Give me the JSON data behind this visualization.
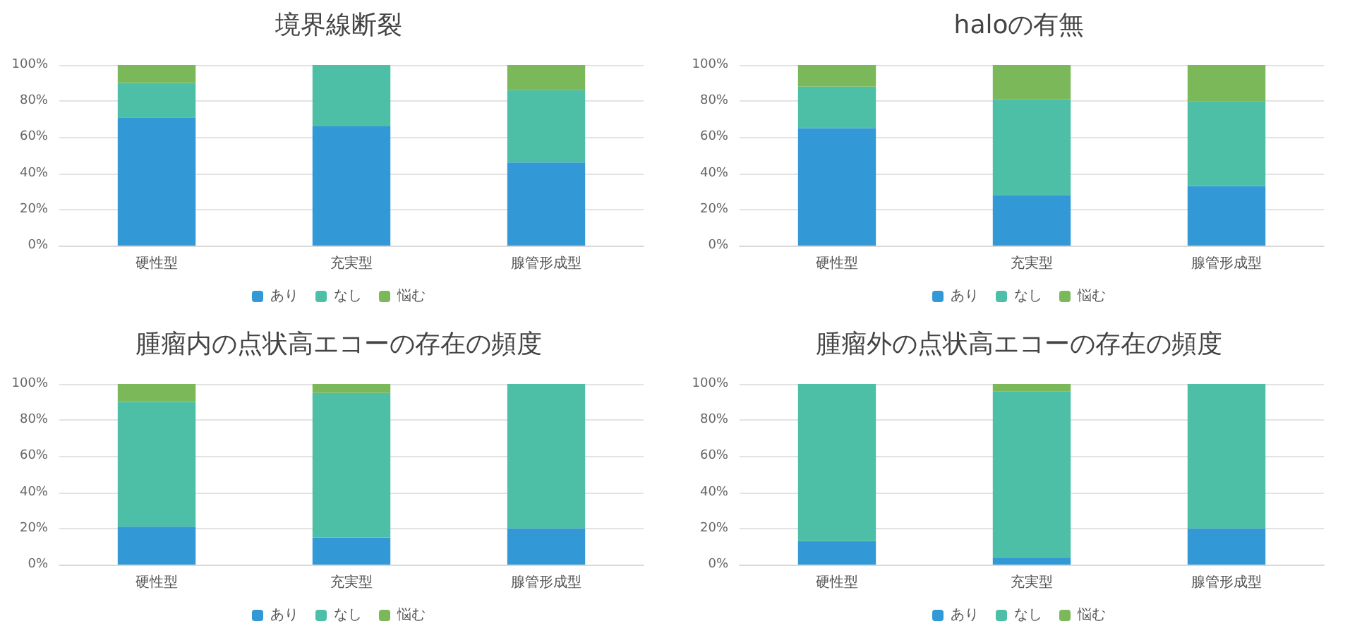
{
  "chart_data": [
    {
      "type": "bar",
      "title": "境界線断裂",
      "categories": [
        "硬性型",
        "充実型",
        "腺管形成型"
      ],
      "stacked": true,
      "legend": "bottom",
      "grid": "y",
      "ylim": [
        0,
        100
      ],
      "yticks": [
        {
          "value": 0,
          "label": "0%"
        },
        {
          "value": 20,
          "label": "20%"
        },
        {
          "value": 40,
          "label": "40%"
        },
        {
          "value": 60,
          "label": "60%"
        },
        {
          "value": 80,
          "label": "80%"
        },
        {
          "value": 100,
          "label": "100%"
        }
      ],
      "series": [
        {
          "name": "あり",
          "color": "#3399d6",
          "values": [
            71,
            66,
            46
          ]
        },
        {
          "name": "なし",
          "color": "#4dbfa6",
          "values": [
            19,
            34,
            40
          ]
        },
        {
          "name": "悩む",
          "color": "#7ab85a",
          "values": [
            10,
            0,
            14
          ]
        }
      ]
    },
    {
      "type": "bar",
      "title": "haloの有無",
      "categories": [
        "硬性型",
        "充実型",
        "腺管形成型"
      ],
      "stacked": true,
      "legend": "bottom",
      "grid": "y",
      "ylim": [
        0,
        100
      ],
      "yticks": [
        {
          "value": 0,
          "label": "0%"
        },
        {
          "value": 20,
          "label": "20%"
        },
        {
          "value": 40,
          "label": "40%"
        },
        {
          "value": 60,
          "label": "60%"
        },
        {
          "value": 80,
          "label": "80%"
        },
        {
          "value": 100,
          "label": "100%"
        }
      ],
      "series": [
        {
          "name": "あり",
          "color": "#3399d6",
          "values": [
            65,
            28,
            33
          ]
        },
        {
          "name": "なし",
          "color": "#4dbfa6",
          "values": [
            23,
            53,
            47
          ]
        },
        {
          "name": "悩む",
          "color": "#7ab85a",
          "values": [
            12,
            19,
            20
          ]
        }
      ]
    },
    {
      "type": "bar",
      "title": "腫瘤内の点状高エコーの存在の頻度",
      "categories": [
        "硬性型",
        "充実型",
        "腺管形成型"
      ],
      "stacked": true,
      "legend": "bottom",
      "grid": "y",
      "ylim": [
        0,
        100
      ],
      "yticks": [
        {
          "value": 0,
          "label": "0%"
        },
        {
          "value": 20,
          "label": "20%"
        },
        {
          "value": 40,
          "label": "40%"
        },
        {
          "value": 60,
          "label": "60%"
        },
        {
          "value": 80,
          "label": "80%"
        },
        {
          "value": 100,
          "label": "100%"
        }
      ],
      "series": [
        {
          "name": "あり",
          "color": "#3399d6",
          "values": [
            21,
            15,
            20
          ]
        },
        {
          "name": "なし",
          "color": "#4dbfa6",
          "values": [
            69,
            80,
            80
          ]
        },
        {
          "name": "悩む",
          "color": "#7ab85a",
          "values": [
            10,
            5,
            0
          ]
        }
      ]
    },
    {
      "type": "bar",
      "title": "腫瘤外の点状高エコーの存在の頻度",
      "categories": [
        "硬性型",
        "充実型",
        "腺管形成型"
      ],
      "stacked": true,
      "legend": "bottom",
      "grid": "y",
      "ylim": [
        0,
        100
      ],
      "yticks": [
        {
          "value": 0,
          "label": "0%"
        },
        {
          "value": 20,
          "label": "20%"
        },
        {
          "value": 40,
          "label": "40%"
        },
        {
          "value": 60,
          "label": "60%"
        },
        {
          "value": 80,
          "label": "80%"
        },
        {
          "value": 100,
          "label": "100%"
        }
      ],
      "series": [
        {
          "name": "あり",
          "color": "#3399d6",
          "values": [
            13,
            4,
            20
          ]
        },
        {
          "name": "なし",
          "color": "#4dbfa6",
          "values": [
            87,
            92,
            80
          ]
        },
        {
          "name": "悩む",
          "color": "#7ab85a",
          "values": [
            0,
            4,
            0
          ]
        }
      ]
    }
  ]
}
